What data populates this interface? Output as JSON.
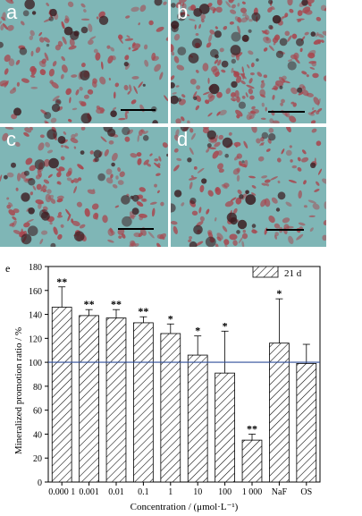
{
  "micrographs": [
    {
      "label": "a",
      "seed": 11,
      "density": 0.55
    },
    {
      "label": "b",
      "seed": 23,
      "density": 0.85
    },
    {
      "label": "c",
      "seed": 37,
      "density": 0.7
    },
    {
      "label": "d",
      "seed": 51,
      "density": 0.6
    }
  ],
  "colors": {
    "stain_background": "#7fb6b6",
    "stain_red": "#a8464e",
    "stain_dark": "#3c1e22",
    "reference_line": "#2f4e9a"
  },
  "chart_data": {
    "type": "bar",
    "panel_label": "e",
    "categories": [
      "0.000 1",
      "0.001",
      "0.01",
      "0.1",
      "1",
      "10",
      "100",
      "1 000",
      "NaF",
      "OS"
    ],
    "series": [
      {
        "name": "21 d",
        "values": [
          146,
          139,
          137,
          133,
          124,
          106,
          91,
          35,
          116,
          99
        ],
        "errors": [
          17,
          5,
          7,
          5,
          8,
          16,
          35,
          5,
          37,
          16
        ],
        "significance": [
          "**",
          "**",
          "**",
          "**",
          "*",
          "*",
          "*",
          "**",
          "*",
          ""
        ]
      }
    ],
    "xlabel": "Concentration / (μmol·L⁻¹)",
    "ylabel": "Mineralized promotion ratio / %",
    "ylim": [
      0,
      180
    ],
    "yticks": [
      0,
      20,
      40,
      60,
      80,
      100,
      120,
      140,
      160,
      180
    ],
    "reference_line": 100,
    "bar_pattern": "diagonal-hatch",
    "legend_position": "top-right",
    "grid": false
  }
}
